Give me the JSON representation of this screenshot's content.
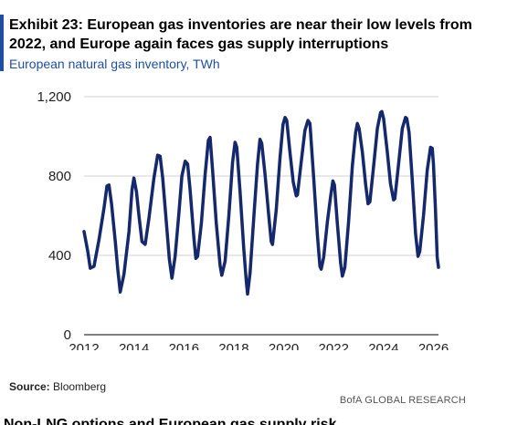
{
  "header": {
    "title": "Exhibit 23: European gas inventories are near their low levels from 2022, and Europe again faces gas supply interruptions",
    "subtitle": "European natural gas inventory, TWh"
  },
  "footer": {
    "source_label": "Source:",
    "source_value": "Bloomberg",
    "brand": "BofA GLOBAL RESEARCH",
    "next_heading_fragment": "Non-LNG options and European gas supply risk"
  },
  "colors": {
    "accent": "#1f4fa3",
    "line": "#14286b",
    "grid": "#d0d0d0",
    "axis": "#000000"
  },
  "chart_data": {
    "type": "line",
    "title": "",
    "xlabel": "",
    "ylabel": "",
    "xlim": [
      2012,
      2026.2
    ],
    "ylim": [
      0,
      1200
    ],
    "x_ticks": [
      2012,
      2014,
      2016,
      2018,
      2020,
      2022,
      2024,
      2026
    ],
    "y_ticks": [
      0,
      400,
      800,
      1200
    ],
    "y_tick_labels": [
      "0",
      "400",
      "800",
      "1,200"
    ],
    "grid": true,
    "series": [
      {
        "name": "",
        "points": [
          [
            2012.0,
            520
          ],
          [
            2012.15,
            420
          ],
          [
            2012.25,
            335
          ],
          [
            2012.4,
            345
          ],
          [
            2012.6,
            480
          ],
          [
            2012.8,
            640
          ],
          [
            2012.92,
            750
          ],
          [
            2013.0,
            755
          ],
          [
            2013.1,
            660
          ],
          [
            2013.25,
            470
          ],
          [
            2013.35,
            330
          ],
          [
            2013.45,
            215
          ],
          [
            2013.6,
            305
          ],
          [
            2013.8,
            520
          ],
          [
            2013.92,
            730
          ],
          [
            2014.0,
            790
          ],
          [
            2014.1,
            720
          ],
          [
            2014.2,
            600
          ],
          [
            2014.32,
            470
          ],
          [
            2014.45,
            455
          ],
          [
            2014.6,
            585
          ],
          [
            2014.8,
            790
          ],
          [
            2014.95,
            905
          ],
          [
            2015.05,
            900
          ],
          [
            2015.15,
            790
          ],
          [
            2015.3,
            560
          ],
          [
            2015.42,
            380
          ],
          [
            2015.52,
            285
          ],
          [
            2015.65,
            395
          ],
          [
            2015.8,
            610
          ],
          [
            2015.92,
            800
          ],
          [
            2016.05,
            875
          ],
          [
            2016.15,
            860
          ],
          [
            2016.25,
            730
          ],
          [
            2016.4,
            490
          ],
          [
            2016.48,
            385
          ],
          [
            2016.55,
            395
          ],
          [
            2016.7,
            560
          ],
          [
            2016.85,
            805
          ],
          [
            2016.98,
            980
          ],
          [
            2017.05,
            995
          ],
          [
            2017.15,
            830
          ],
          [
            2017.3,
            560
          ],
          [
            2017.45,
            350
          ],
          [
            2017.52,
            300
          ],
          [
            2017.65,
            370
          ],
          [
            2017.8,
            600
          ],
          [
            2017.95,
            870
          ],
          [
            2018.05,
            970
          ],
          [
            2018.12,
            945
          ],
          [
            2018.25,
            720
          ],
          [
            2018.4,
            430
          ],
          [
            2018.5,
            270
          ],
          [
            2018.55,
            205
          ],
          [
            2018.65,
            310
          ],
          [
            2018.8,
            590
          ],
          [
            2018.95,
            860
          ],
          [
            2019.05,
            985
          ],
          [
            2019.12,
            965
          ],
          [
            2019.25,
            810
          ],
          [
            2019.4,
            600
          ],
          [
            2019.5,
            470
          ],
          [
            2019.55,
            455
          ],
          [
            2019.7,
            630
          ],
          [
            2019.85,
            890
          ],
          [
            2019.97,
            1060
          ],
          [
            2020.05,
            1095
          ],
          [
            2020.12,
            1080
          ],
          [
            2020.25,
            920
          ],
          [
            2020.38,
            770
          ],
          [
            2020.5,
            700
          ],
          [
            2020.55,
            705
          ],
          [
            2020.7,
            870
          ],
          [
            2020.85,
            1030
          ],
          [
            2020.97,
            1080
          ],
          [
            2021.05,
            1065
          ],
          [
            2021.2,
            790
          ],
          [
            2021.35,
            500
          ],
          [
            2021.45,
            345
          ],
          [
            2021.5,
            330
          ],
          [
            2021.6,
            390
          ],
          [
            2021.75,
            570
          ],
          [
            2021.88,
            700
          ],
          [
            2021.97,
            775
          ],
          [
            2022.03,
            755
          ],
          [
            2022.15,
            560
          ],
          [
            2022.28,
            360
          ],
          [
            2022.35,
            295
          ],
          [
            2022.45,
            340
          ],
          [
            2022.6,
            570
          ],
          [
            2022.75,
            850
          ],
          [
            2022.88,
            1020
          ],
          [
            2022.95,
            1065
          ],
          [
            2023.02,
            1040
          ],
          [
            2023.15,
            920
          ],
          [
            2023.28,
            760
          ],
          [
            2023.38,
            660
          ],
          [
            2023.45,
            670
          ],
          [
            2023.6,
            850
          ],
          [
            2023.75,
            1040
          ],
          [
            2023.88,
            1120
          ],
          [
            2023.93,
            1125
          ],
          [
            2024.0,
            1090
          ],
          [
            2024.15,
            920
          ],
          [
            2024.28,
            760
          ],
          [
            2024.4,
            680
          ],
          [
            2024.45,
            685
          ],
          [
            2024.6,
            860
          ],
          [
            2024.75,
            1040
          ],
          [
            2024.88,
            1095
          ],
          [
            2024.93,
            1090
          ],
          [
            2025.02,
            1020
          ],
          [
            2025.15,
            780
          ],
          [
            2025.28,
            510
          ],
          [
            2025.38,
            395
          ],
          [
            2025.45,
            420
          ],
          [
            2025.6,
            600
          ],
          [
            2025.75,
            830
          ],
          [
            2025.88,
            945
          ],
          [
            2025.95,
            940
          ],
          [
            2026.0,
            860
          ],
          [
            2026.08,
            630
          ],
          [
            2026.15,
            390
          ],
          [
            2026.2,
            340
          ]
        ]
      }
    ]
  }
}
